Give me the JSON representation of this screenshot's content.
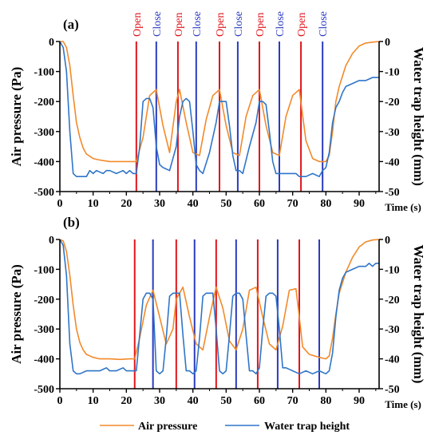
{
  "colors": {
    "air": "#f28a2a",
    "water": "#2f75c8",
    "open": "#e0151b",
    "close": "#2b3bbf",
    "axis": "#000000",
    "grid": "#cfcfcf"
  },
  "legend": {
    "items": [
      {
        "label": "Air pressure",
        "color": "#f28a2a"
      },
      {
        "label": "Water trap height",
        "color": "#2f75c8"
      }
    ]
  },
  "chart_data": [
    {
      "type": "line",
      "panel": "(a)",
      "xlabel": "Time (s)",
      "ylabel": "Air pressure (Pa)",
      "y2label": "Water trap height (mm)",
      "xlim": [
        0,
        96
      ],
      "ylim": [
        -500,
        0
      ],
      "y2lim": [
        -50,
        0
      ],
      "xticks": [
        0,
        10,
        20,
        30,
        40,
        50,
        60,
        70,
        80,
        90
      ],
      "yticks": [
        0,
        -100,
        -200,
        -300,
        -400,
        -500
      ],
      "y2ticks": [
        0,
        -10,
        -20,
        -30,
        -40,
        -50
      ],
      "event_lines": [
        {
          "label": "Open",
          "x": 23,
          "type": "open"
        },
        {
          "label": "Close",
          "x": 29,
          "type": "close"
        },
        {
          "label": "Close",
          "x": 41,
          "type": "close"
        },
        {
          "label": "Open",
          "x": 35.5,
          "type": "open"
        },
        {
          "label": "Open",
          "x": 48,
          "type": "open"
        },
        {
          "label": "Close",
          "x": 53.5,
          "type": "close"
        },
        {
          "label": "Open",
          "x": 60,
          "type": "open"
        },
        {
          "label": "Close",
          "x": 66,
          "type": "close"
        },
        {
          "label": "Open",
          "x": 72.5,
          "type": "open"
        },
        {
          "label": "Close",
          "x": 79,
          "type": "close"
        }
      ],
      "series": [
        {
          "name": "Air pressure",
          "axis": "left",
          "x": [
            0,
            1,
            2,
            3,
            4,
            5,
            6,
            7,
            8,
            10,
            12,
            15,
            18,
            21,
            23,
            25,
            27,
            29,
            31,
            33,
            35,
            36,
            38,
            40,
            42,
            44,
            46,
            48,
            50,
            52,
            54,
            56,
            58,
            60,
            62,
            64,
            66,
            68,
            70,
            72,
            74,
            76,
            78,
            79,
            80,
            81,
            82,
            83,
            84,
            86,
            88,
            90,
            92,
            94,
            96
          ],
          "y": [
            0,
            0,
            -20,
            -80,
            -180,
            -270,
            -320,
            -355,
            -375,
            -390,
            -395,
            -400,
            -400,
            -400,
            -400,
            -320,
            -180,
            -160,
            -280,
            -370,
            -200,
            -160,
            -270,
            -370,
            -380,
            -260,
            -180,
            -160,
            -280,
            -370,
            -380,
            -250,
            -180,
            -160,
            -280,
            -370,
            -380,
            -250,
            -180,
            -160,
            -330,
            -390,
            -400,
            -400,
            -400,
            -380,
            -300,
            -200,
            -150,
            -80,
            -40,
            -15,
            -5,
            -2,
            0
          ]
        },
        {
          "name": "Water trap height",
          "axis": "right",
          "x": [
            0,
            1,
            2,
            3,
            4,
            5,
            6,
            8,
            9,
            10,
            11,
            13,
            14,
            15,
            17,
            19,
            20,
            21,
            22,
            23,
            24,
            25,
            26,
            27,
            28,
            29,
            30,
            31,
            33,
            35,
            36,
            37,
            38,
            39,
            40,
            41,
            42,
            43,
            45,
            47,
            48,
            49,
            50,
            51,
            52,
            53,
            54,
            55,
            57,
            59,
            60,
            61,
            62,
            63,
            64,
            65,
            66,
            67,
            69,
            71,
            72,
            74,
            76,
            78,
            79,
            80,
            81,
            82,
            83,
            84,
            85,
            86,
            88,
            90,
            92,
            94,
            96
          ],
          "y": [
            0,
            -2,
            -10,
            -30,
            -44,
            -45,
            -45,
            -45,
            -43,
            -44,
            -43,
            -44,
            -43,
            -43,
            -44,
            -43,
            -44,
            -43,
            -44,
            -44,
            -35,
            -20,
            -19,
            -19,
            -22,
            -35,
            -41,
            -42,
            -43,
            -35,
            -25,
            -20,
            -19,
            -20,
            -30,
            -41,
            -43,
            -44,
            -37,
            -27,
            -20,
            -20,
            -20,
            -28,
            -38,
            -43,
            -43,
            -44,
            -35,
            -27,
            -20,
            -20,
            -21,
            -30,
            -40,
            -44,
            -44,
            -44,
            -44,
            -44,
            -45,
            -45,
            -44,
            -45,
            -43,
            -42,
            -37,
            -27,
            -22,
            -20,
            -17,
            -15,
            -14,
            -13,
            -13,
            -12,
            -12
          ]
        }
      ]
    },
    {
      "type": "line",
      "panel": "(b)",
      "xlabel": "Time (s)",
      "ylabel": "Air pressure (Pa)",
      "y2label": "Water trap height (mm)",
      "xlim": [
        0,
        96
      ],
      "ylim": [
        -500,
        0
      ],
      "y2lim": [
        -50,
        0
      ],
      "xticks": [
        0,
        10,
        20,
        30,
        40,
        50,
        60,
        70,
        80,
        90
      ],
      "yticks": [
        0,
        -100,
        -200,
        -300,
        -400,
        -500
      ],
      "y2ticks": [
        0,
        -10,
        -20,
        -30,
        -40,
        -50
      ],
      "event_lines": [
        {
          "x": 22.5,
          "type": "open"
        },
        {
          "x": 28,
          "type": "close"
        },
        {
          "x": 35,
          "type": "open"
        },
        {
          "x": 40.5,
          "type": "close"
        },
        {
          "x": 47,
          "type": "open"
        },
        {
          "x": 53,
          "type": "close"
        },
        {
          "x": 59.5,
          "type": "open"
        },
        {
          "x": 65.5,
          "type": "close"
        },
        {
          "x": 72,
          "type": "open"
        },
        {
          "x": 78,
          "type": "close"
        }
      ],
      "series": [
        {
          "name": "Air pressure",
          "axis": "left",
          "x": [
            0,
            1,
            2,
            3,
            4,
            5,
            6,
            7,
            8,
            10,
            12,
            15,
            18,
            21,
            22.5,
            24,
            26,
            28,
            30,
            32,
            34,
            35,
            37,
            39,
            41,
            43,
            45,
            47,
            49,
            51,
            53,
            55,
            57,
            59,
            61,
            63,
            65,
            67,
            69,
            71,
            72,
            73,
            75,
            78,
            80,
            81,
            82,
            83,
            84,
            86,
            88,
            90,
            92,
            94,
            96
          ],
          "y": [
            0,
            -5,
            -40,
            -120,
            -220,
            -300,
            -345,
            -370,
            -385,
            -395,
            -400,
            -400,
            -402,
            -400,
            -400,
            -330,
            -220,
            -170,
            -260,
            -350,
            -300,
            -200,
            -160,
            -260,
            -350,
            -370,
            -260,
            -160,
            -230,
            -340,
            -370,
            -300,
            -170,
            -160,
            -260,
            -350,
            -370,
            -290,
            -170,
            -165,
            -260,
            -360,
            -385,
            -395,
            -400,
            -390,
            -330,
            -250,
            -180,
            -110,
            -60,
            -25,
            -8,
            -2,
            0
          ]
        },
        {
          "name": "Water trap height",
          "axis": "right",
          "x": [
            0,
            1,
            2,
            3,
            4,
            5,
            6,
            8,
            10,
            12,
            14,
            15,
            17,
            19,
            20,
            21,
            22,
            23,
            24,
            25,
            26,
            27,
            28,
            29,
            30,
            31,
            32,
            33,
            34,
            35,
            36,
            37,
            38,
            39,
            40,
            41,
            42,
            43,
            44,
            45,
            46,
            47,
            48,
            49,
            50,
            51,
            52,
            53,
            54,
            55,
            56,
            57,
            58,
            59,
            60,
            61,
            62,
            63,
            64,
            65,
            66,
            67,
            68,
            70,
            72,
            74,
            76,
            78,
            80,
            81,
            82,
            83,
            84,
            85,
            86,
            88,
            90,
            92,
            93,
            94,
            95,
            96
          ],
          "y": [
            0,
            -2,
            -12,
            -35,
            -44,
            -45,
            -45,
            -44,
            -44,
            -44,
            -43,
            -44,
            -44,
            -43,
            -44,
            -44,
            -44,
            -44,
            -32,
            -20,
            -18,
            -18,
            -20,
            -44,
            -45,
            -44,
            -33,
            -19,
            -18,
            -18,
            -18,
            -32,
            -44,
            -44,
            -45,
            -44,
            -33,
            -19,
            -18,
            -18,
            -18,
            -30,
            -44,
            -45,
            -44,
            -32,
            -19,
            -18,
            -18,
            -20,
            -32,
            -44,
            -44,
            -45,
            -43,
            -30,
            -19,
            -18,
            -18,
            -19,
            -30,
            -43,
            -43,
            -44,
            -45,
            -44,
            -45,
            -44,
            -45,
            -44,
            -38,
            -26,
            -17,
            -13,
            -11,
            -10,
            -9,
            -9,
            -8,
            -9,
            -8,
            -8
          ]
        }
      ]
    }
  ]
}
